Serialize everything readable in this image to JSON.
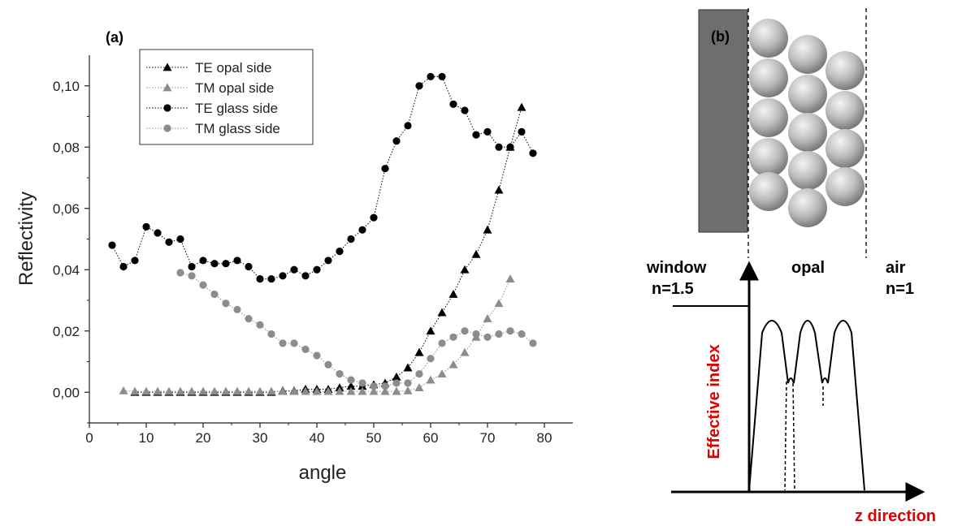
{
  "chart_data": {
    "type": "scatter",
    "panel_label": "(a)",
    "xlabel": "angle",
    "ylabel": "Reflectivity",
    "xlim": [
      0,
      85
    ],
    "ylim": [
      -0.01,
      0.11
    ],
    "x_ticks": [
      "0",
      "10",
      "20",
      "30",
      "40",
      "50",
      "60",
      "70",
      "80"
    ],
    "y_ticks": [
      "0,00",
      "0,02",
      "0,04",
      "0,06",
      "0,08",
      "0,10"
    ],
    "legend_position": "top-left",
    "series": [
      {
        "name": "TE opal side",
        "marker": "triangle",
        "color": "#000000",
        "x": [
          8,
          10,
          12,
          14,
          16,
          18,
          20,
          22,
          24,
          26,
          28,
          30,
          32,
          34,
          36,
          38,
          40,
          42,
          44,
          46,
          48,
          50,
          52,
          54,
          56,
          58,
          60,
          62,
          64,
          66,
          68,
          70,
          72,
          74,
          76
        ],
        "y": [
          0.0,
          0.0,
          0.0,
          0.0,
          0.0,
          0.0,
          0.0,
          0.0,
          0.0,
          0.0,
          0.0,
          0.0,
          0.0,
          0.0005,
          0.0005,
          0.001,
          0.001,
          0.001,
          0.0015,
          0.002,
          0.002,
          0.0025,
          0.003,
          0.005,
          0.008,
          0.013,
          0.02,
          0.026,
          0.032,
          0.04,
          0.045,
          0.053,
          0.066,
          0.08,
          0.093
        ]
      },
      {
        "name": "TM opal side",
        "marker": "triangle",
        "color": "#8c8c8c",
        "x": [
          6,
          8,
          10,
          12,
          14,
          16,
          18,
          20,
          22,
          24,
          26,
          28,
          30,
          32,
          34,
          36,
          38,
          40,
          42,
          44,
          46,
          48,
          50,
          52,
          54,
          56,
          58,
          60,
          62,
          64,
          66,
          68,
          70,
          72,
          74
        ],
        "y": [
          0.0005,
          0.0003,
          0.0003,
          0.0003,
          0.0003,
          0.0003,
          0.0003,
          0.0003,
          0.0003,
          0.0003,
          0.0003,
          0.0003,
          0.0003,
          0.0003,
          0.0003,
          0.0003,
          0.0003,
          0.0003,
          0.0003,
          0.0003,
          0.0003,
          0.0003,
          0.0003,
          0.0003,
          0.0003,
          0.0005,
          0.0015,
          0.004,
          0.006,
          0.009,
          0.013,
          0.018,
          0.024,
          0.029,
          0.037
        ]
      },
      {
        "name": "TE glass side",
        "marker": "circle",
        "color": "#000000",
        "x": [
          4,
          6,
          8,
          10,
          12,
          14,
          16,
          18,
          20,
          22,
          24,
          26,
          28,
          30,
          32,
          34,
          36,
          38,
          40,
          42,
          44,
          46,
          48,
          50,
          52,
          54,
          56,
          58,
          60,
          62,
          64,
          66,
          68,
          70,
          72,
          74,
          76,
          78
        ],
        "y": [
          0.048,
          0.041,
          0.043,
          0.054,
          0.052,
          0.049,
          0.05,
          0.041,
          0.043,
          0.042,
          0.042,
          0.043,
          0.041,
          0.037,
          0.037,
          0.038,
          0.04,
          0.038,
          0.04,
          0.043,
          0.046,
          0.05,
          0.053,
          0.057,
          0.073,
          0.082,
          0.087,
          0.1,
          0.103,
          0.103,
          0.094,
          0.092,
          0.084,
          0.085,
          0.08,
          0.08,
          0.085,
          0.078
        ]
      },
      {
        "name": "TM glass side",
        "marker": "circle",
        "color": "#8c8c8c",
        "x": [
          16,
          18,
          20,
          22,
          24,
          26,
          28,
          30,
          32,
          34,
          36,
          38,
          40,
          42,
          44,
          46,
          48,
          50,
          52,
          54,
          56,
          58,
          60,
          62,
          64,
          66,
          68,
          70,
          72,
          74,
          76,
          78
        ],
        "y": [
          0.039,
          0.038,
          0.035,
          0.032,
          0.029,
          0.027,
          0.024,
          0.022,
          0.019,
          0.016,
          0.016,
          0.014,
          0.012,
          0.009,
          0.006,
          0.004,
          0.003,
          0.002,
          0.002,
          0.003,
          0.003,
          0.006,
          0.011,
          0.016,
          0.018,
          0.02,
          0.019,
          0.018,
          0.019,
          0.02,
          0.019,
          0.016
        ]
      }
    ]
  },
  "diagram": {
    "panel_label": "(b)",
    "window_label": "window",
    "window_index": "n=1.5",
    "opal_label": "opal",
    "air_label": "air",
    "air_index": "n=1",
    "y_axis_label": "Effective index",
    "x_axis_label": "z direction",
    "colors": {
      "window_fill": "#6e6e6e",
      "sphere_light": "#f2f2f2",
      "sphere_dark": "#7a7a7a",
      "red_label": "#e00000"
    }
  }
}
